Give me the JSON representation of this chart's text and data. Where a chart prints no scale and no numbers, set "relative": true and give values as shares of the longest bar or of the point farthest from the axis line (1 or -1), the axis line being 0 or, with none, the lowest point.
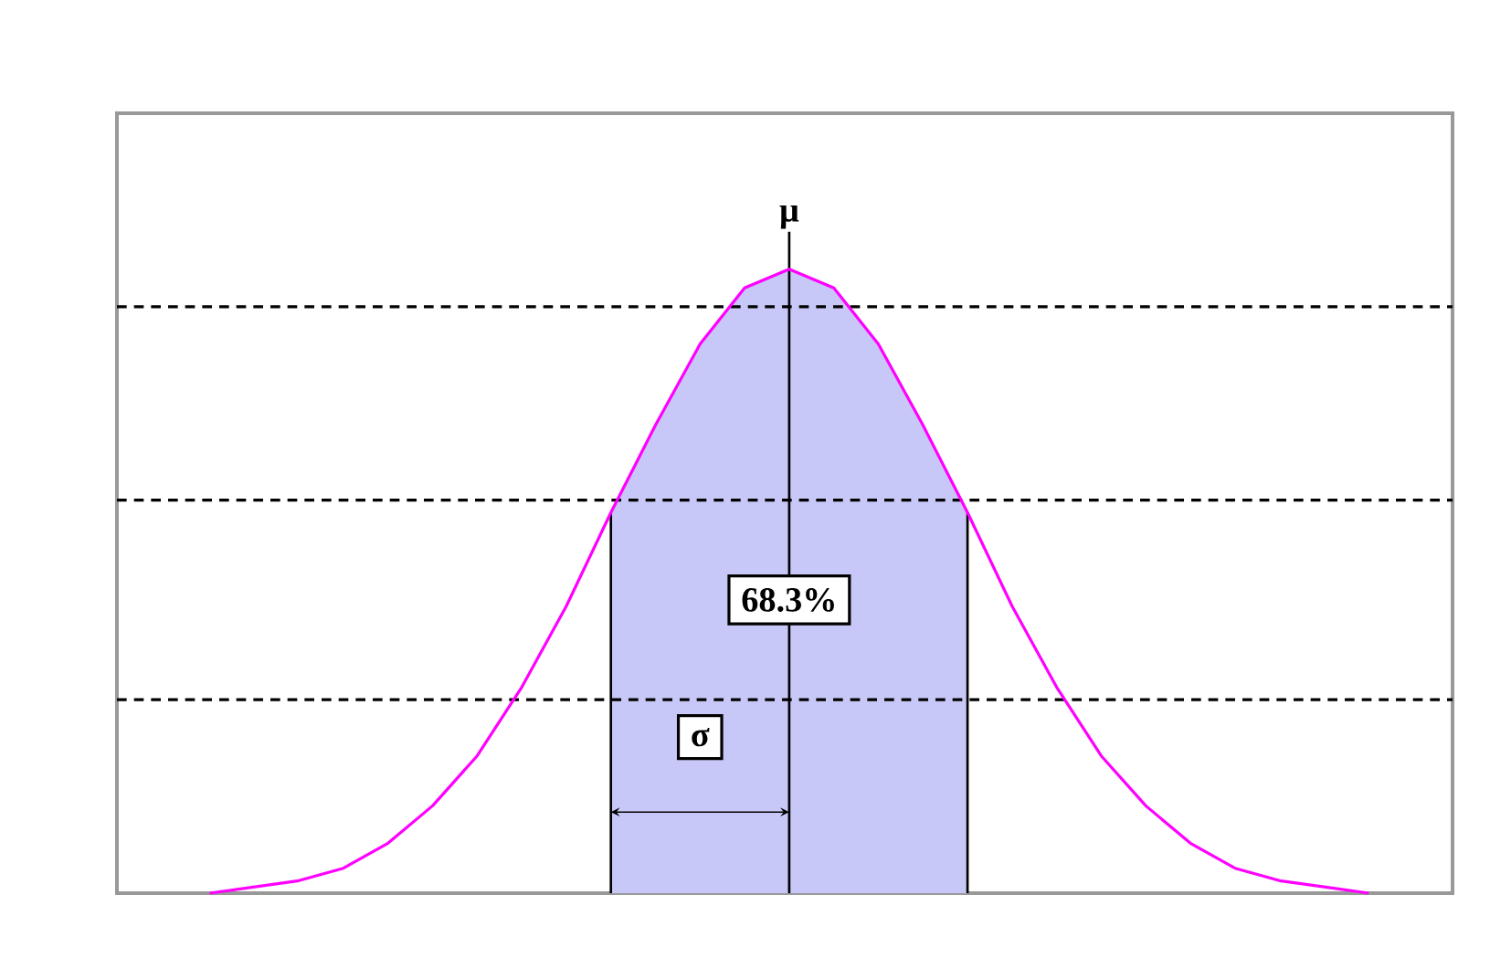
{
  "chart_data": {
    "type": "line",
    "relative": true,
    "categories": [
      null,
      null,
      null,
      null,
      null,
      null,
      null,
      null,
      null,
      null,
      null,
      null,
      null,
      null,
      null,
      null,
      null,
      null,
      null,
      null,
      null,
      null,
      null,
      null,
      null,
      null,
      null
    ],
    "series": [
      {
        "color": "#ff00ff",
        "values": [
          0,
          0.01,
          0.02,
          0.04,
          0.08,
          0.14,
          0.22,
          0.33,
          0.46,
          0.61,
          0.75,
          0.88,
          0.97,
          1,
          0.97,
          0.88,
          0.75,
          0.61,
          0.46,
          0.33,
          0.22,
          0.14,
          0.08,
          0.04,
          0.02,
          0.01,
          0
        ]
      }
    ],
    "ref_lines": [
      {
        "axis": "y",
        "value": 0.31,
        "color": "#000000",
        "line_style": "dashed"
      },
      {
        "axis": "y",
        "value": 0.63,
        "color": "#000000",
        "line_style": "dashed"
      },
      {
        "axis": "y",
        "value": 0.94,
        "color": "#000000",
        "line_style": "dashed"
      }
    ],
    "annotations": [
      "μ",
      "68.3%",
      "σ"
    ]
  }
}
